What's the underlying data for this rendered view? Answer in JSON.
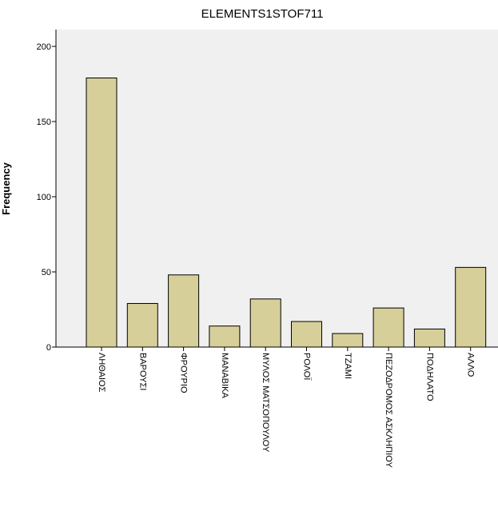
{
  "chart_data": {
    "type": "bar",
    "title": "ELEMENTS1STOF711",
    "ylabel": "Frequency",
    "xlabel": "",
    "ylim": [
      0,
      200
    ],
    "yticks": [
      0,
      50,
      100,
      150,
      200
    ],
    "grid": false,
    "categories": [
      "ΛΗΘΑΙΟΣ",
      "ΒΑΡΟΥΣΙ",
      "ΦΡΟΥΡΙΟ",
      "ΜΑΝΑΒΙΚΑ",
      "ΜΥΛΟΣ ΜΑΤΣΟΠΟΥΛΟΥ",
      "ΡΟΛΟΪ",
      "ΤΖΑΜΙ",
      "ΠΕΖΟΔΡΟΜΟΣ ΑΣΚΛΗΠΙΟΥ",
      "ΠΟΔΗΛΑΤΟ",
      "ΑΛΛΟ"
    ],
    "values": [
      179,
      29,
      48,
      14,
      32,
      17,
      9,
      26,
      12,
      53
    ],
    "colors": {
      "bar_fill": "#d6cf99",
      "bar_stroke": "#000000",
      "plot_bg": "#f0f0f0",
      "axis": "#000000"
    }
  }
}
